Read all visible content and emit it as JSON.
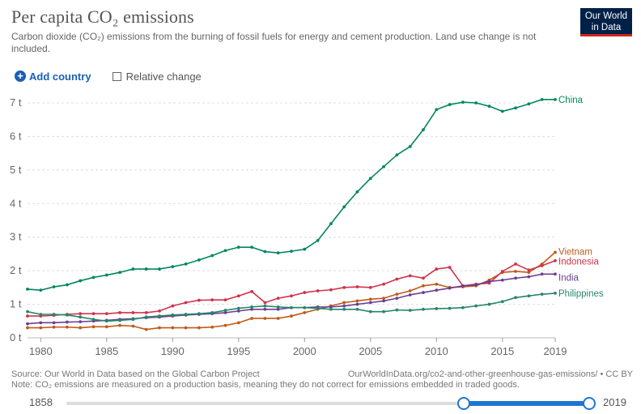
{
  "header": {
    "title": "Per capita CO₂ emissions",
    "subtitle": "Carbon dioxide (CO₂) emissions from the burning of fossil fuels for energy and cement production. Land use change is not included.",
    "logo_line1": "Our World",
    "logo_line2": "in Data"
  },
  "controls": {
    "add_country": "Add country",
    "relative_change": "Relative change"
  },
  "footer": {
    "source": "Source: Our World in Data based on the Global Carbon Project",
    "url": "OurWorldInData.org/co2-and-other-greenhouse-gas-emissions/ • CC BY",
    "note": "Note: CO₂ emissions are measured on a production basis, meaning they do not correct for emissions embedded in traded goods."
  },
  "timeline": {
    "start": "1858",
    "end": "2019"
  },
  "chart_data": {
    "type": "line",
    "title": "Per capita CO₂ emissions",
    "xlim": [
      1979,
      2019
    ],
    "ylim": [
      0,
      7
    ],
    "yticks": [
      0,
      1,
      2,
      3,
      4,
      5,
      6,
      7
    ],
    "ytick_labels": [
      "0 t",
      "1 t",
      "2 t",
      "3 t",
      "4 t",
      "5 t",
      "6 t",
      "7 t"
    ],
    "xticks": [
      1980,
      1985,
      1990,
      1995,
      2000,
      2005,
      2010,
      2015,
      2019
    ],
    "grid": "horizontal dashed",
    "legend": "inline labels at line ends (right)",
    "x": [
      1979,
      1980,
      1981,
      1982,
      1983,
      1984,
      1985,
      1986,
      1987,
      1988,
      1989,
      1990,
      1991,
      1992,
      1993,
      1994,
      1995,
      1996,
      1997,
      1998,
      1999,
      2000,
      2001,
      2002,
      2003,
      2004,
      2005,
      2006,
      2007,
      2008,
      2009,
      2010,
      2011,
      2012,
      2013,
      2014,
      2015,
      2016,
      2017,
      2018,
      2019
    ],
    "series": [
      {
        "name": "China",
        "color": "#00875e",
        "values": [
          1.45,
          1.42,
          1.52,
          1.58,
          1.7,
          1.8,
          1.87,
          1.95,
          2.05,
          2.05,
          2.05,
          2.12,
          2.2,
          2.32,
          2.45,
          2.6,
          2.7,
          2.7,
          2.57,
          2.53,
          2.58,
          2.64,
          2.9,
          3.4,
          3.9,
          4.35,
          4.75,
          5.1,
          5.45,
          5.7,
          6.2,
          6.8,
          6.95,
          7.02,
          7.0,
          6.9,
          6.75,
          6.85,
          6.97,
          7.1,
          7.1
        ]
      },
      {
        "name": "Vietnam",
        "color": "#c15a1b",
        "values": [
          0.3,
          0.3,
          0.32,
          0.32,
          0.3,
          0.33,
          0.33,
          0.37,
          0.35,
          0.25,
          0.3,
          0.3,
          0.3,
          0.3,
          0.32,
          0.37,
          0.45,
          0.58,
          0.58,
          0.58,
          0.65,
          0.75,
          0.85,
          0.95,
          1.05,
          1.1,
          1.15,
          1.18,
          1.3,
          1.4,
          1.55,
          1.6,
          1.5,
          1.52,
          1.55,
          1.72,
          1.95,
          1.98,
          1.95,
          2.2,
          2.55
        ]
      },
      {
        "name": "Indonesia",
        "color": "#d1324b",
        "values": [
          0.65,
          0.65,
          0.67,
          0.7,
          0.72,
          0.72,
          0.72,
          0.75,
          0.75,
          0.75,
          0.8,
          0.95,
          1.05,
          1.12,
          1.13,
          1.13,
          1.25,
          1.38,
          1.05,
          1.18,
          1.25,
          1.35,
          1.4,
          1.43,
          1.5,
          1.52,
          1.5,
          1.6,
          1.75,
          1.85,
          1.78,
          2.05,
          2.1,
          1.55,
          1.6,
          1.63,
          1.98,
          2.2,
          2.02,
          2.15,
          2.3
        ]
      },
      {
        "name": "India",
        "color": "#6d3e91",
        "values": [
          0.42,
          0.45,
          0.45,
          0.47,
          0.48,
          0.5,
          0.52,
          0.55,
          0.57,
          0.6,
          0.62,
          0.65,
          0.68,
          0.7,
          0.72,
          0.75,
          0.8,
          0.85,
          0.85,
          0.85,
          0.9,
          0.9,
          0.92,
          0.92,
          0.95,
          1.0,
          1.05,
          1.1,
          1.18,
          1.28,
          1.35,
          1.42,
          1.48,
          1.55,
          1.58,
          1.68,
          1.72,
          1.78,
          1.82,
          1.9,
          1.9
        ]
      },
      {
        "name": "Philippines",
        "color": "#26866a",
        "values": [
          0.78,
          0.7,
          0.7,
          0.68,
          0.62,
          0.55,
          0.5,
          0.52,
          0.55,
          0.62,
          0.65,
          0.68,
          0.7,
          0.72,
          0.75,
          0.82,
          0.88,
          0.92,
          0.95,
          0.92,
          0.9,
          0.9,
          0.88,
          0.85,
          0.85,
          0.85,
          0.78,
          0.78,
          0.83,
          0.82,
          0.85,
          0.87,
          0.88,
          0.9,
          0.95,
          1.0,
          1.08,
          1.2,
          1.25,
          1.3,
          1.33
        ]
      }
    ]
  }
}
